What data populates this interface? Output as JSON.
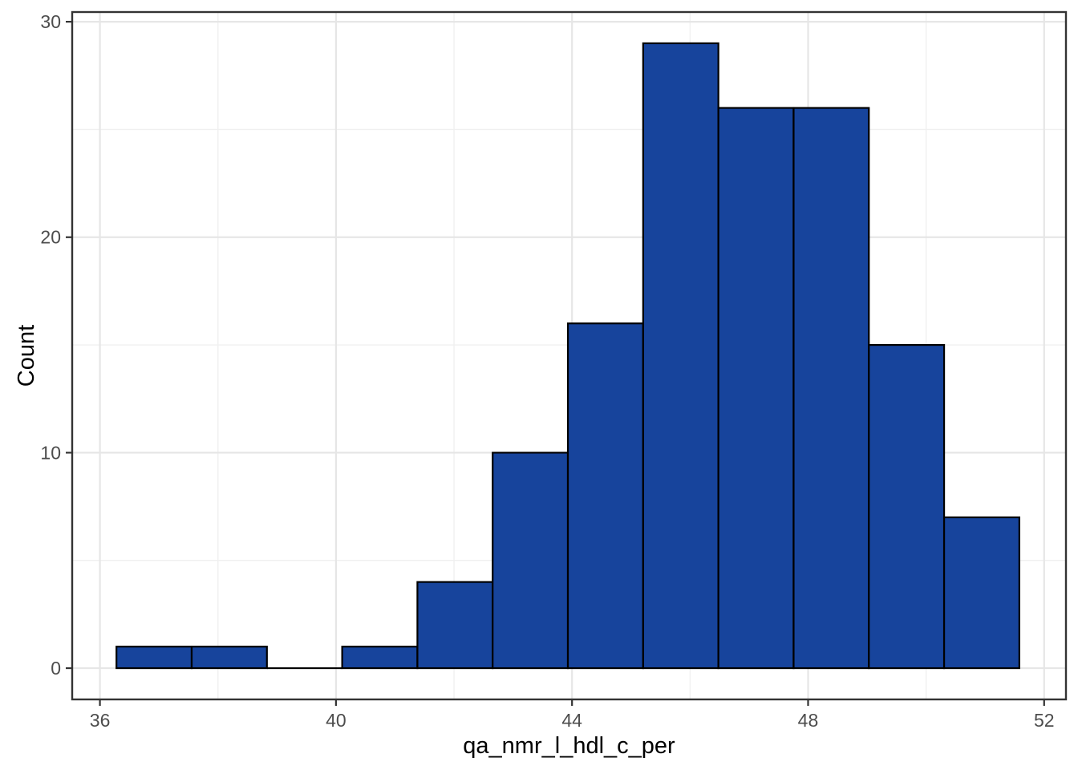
{
  "chart_data": {
    "type": "bar",
    "subtype": "histogram",
    "title": "",
    "xlabel": "qa_nmr_l_hdl_c_per",
    "ylabel": "Count",
    "bin_start": 36.28,
    "bin_width": 1.275,
    "bin_edges": [
      36.28,
      37.56,
      38.83,
      40.11,
      41.38,
      42.66,
      43.93,
      45.21,
      46.48,
      47.76,
      49.03,
      50.31,
      51.58
    ],
    "counts": [
      1,
      1,
      0,
      1,
      4,
      10,
      16,
      29,
      26,
      26,
      15,
      7
    ],
    "x_ticks": [
      36,
      40,
      44,
      48,
      52
    ],
    "x_minor_ticks": [
      38,
      42,
      46,
      50
    ],
    "y_ticks": [
      0,
      10,
      20,
      30
    ],
    "y_minor_ticks": [
      5,
      15,
      25
    ],
    "xlim": [
      35.53,
      52.37
    ],
    "ylim": [
      -1.45,
      30.45
    ],
    "grid": true,
    "legend": false,
    "colors": {
      "bar_fill": "#17449C",
      "bar_stroke": "#000000",
      "grid_major": "#E6E6E6",
      "grid_minor": "#F0F0F0",
      "panel_border": "#333333",
      "tick_mark": "#333333",
      "tick_label": "#4D4D4D",
      "axis_title": "#000000",
      "background": "#FFFFFF"
    }
  }
}
